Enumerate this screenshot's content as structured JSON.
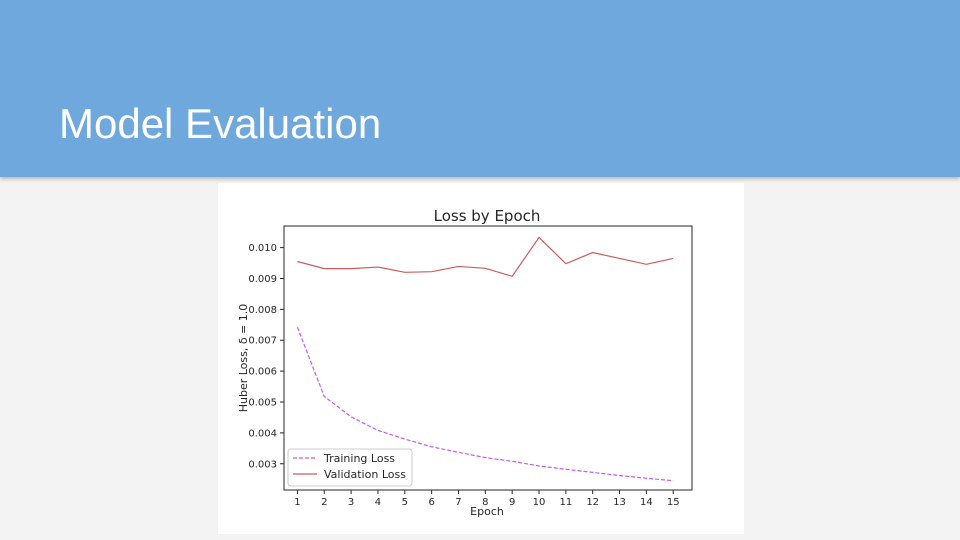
{
  "slide": {
    "title": "Model Evaluation",
    "header_color": "#6fa8dc",
    "background_color": "#f3f3f3"
  },
  "chart_data": {
    "type": "line",
    "title": "Loss by Epoch",
    "xlabel": "Epoch",
    "ylabel": "Huber Loss, δ = 1.0",
    "x": [
      1,
      2,
      3,
      4,
      5,
      6,
      7,
      8,
      9,
      10,
      11,
      12,
      13,
      14,
      15
    ],
    "xticks": [
      "1",
      "2",
      "3",
      "4",
      "5",
      "6",
      "7",
      "8",
      "9",
      "10",
      "11",
      "12",
      "13",
      "14",
      "15"
    ],
    "yticks": [
      "0.003",
      "0.004",
      "0.005",
      "0.006",
      "0.007",
      "0.008",
      "0.009",
      "0.010"
    ],
    "ylim": [
      0.00215,
      0.0107
    ],
    "xlim": [
      0.5,
      15.7
    ],
    "legend_position": "lower-left",
    "grid": false,
    "series": [
      {
        "name": "Training Loss",
        "color": "#c15ef0",
        "style": "dashed",
        "values": [
          0.00742,
          0.00518,
          0.00452,
          0.00408,
          0.0038,
          0.00355,
          0.00337,
          0.0032,
          0.00308,
          0.00293,
          0.00282,
          0.00272,
          0.00262,
          0.00253,
          0.00245
        ]
      },
      {
        "name": "Validation Loss",
        "color": "#cd5c5c",
        "style": "solid",
        "values": [
          0.00955,
          0.00932,
          0.00932,
          0.00937,
          0.0092,
          0.00922,
          0.00939,
          0.00933,
          0.00907,
          0.01033,
          0.00948,
          0.00984,
          0.00965,
          0.00946,
          0.00965
        ]
      }
    ]
  }
}
